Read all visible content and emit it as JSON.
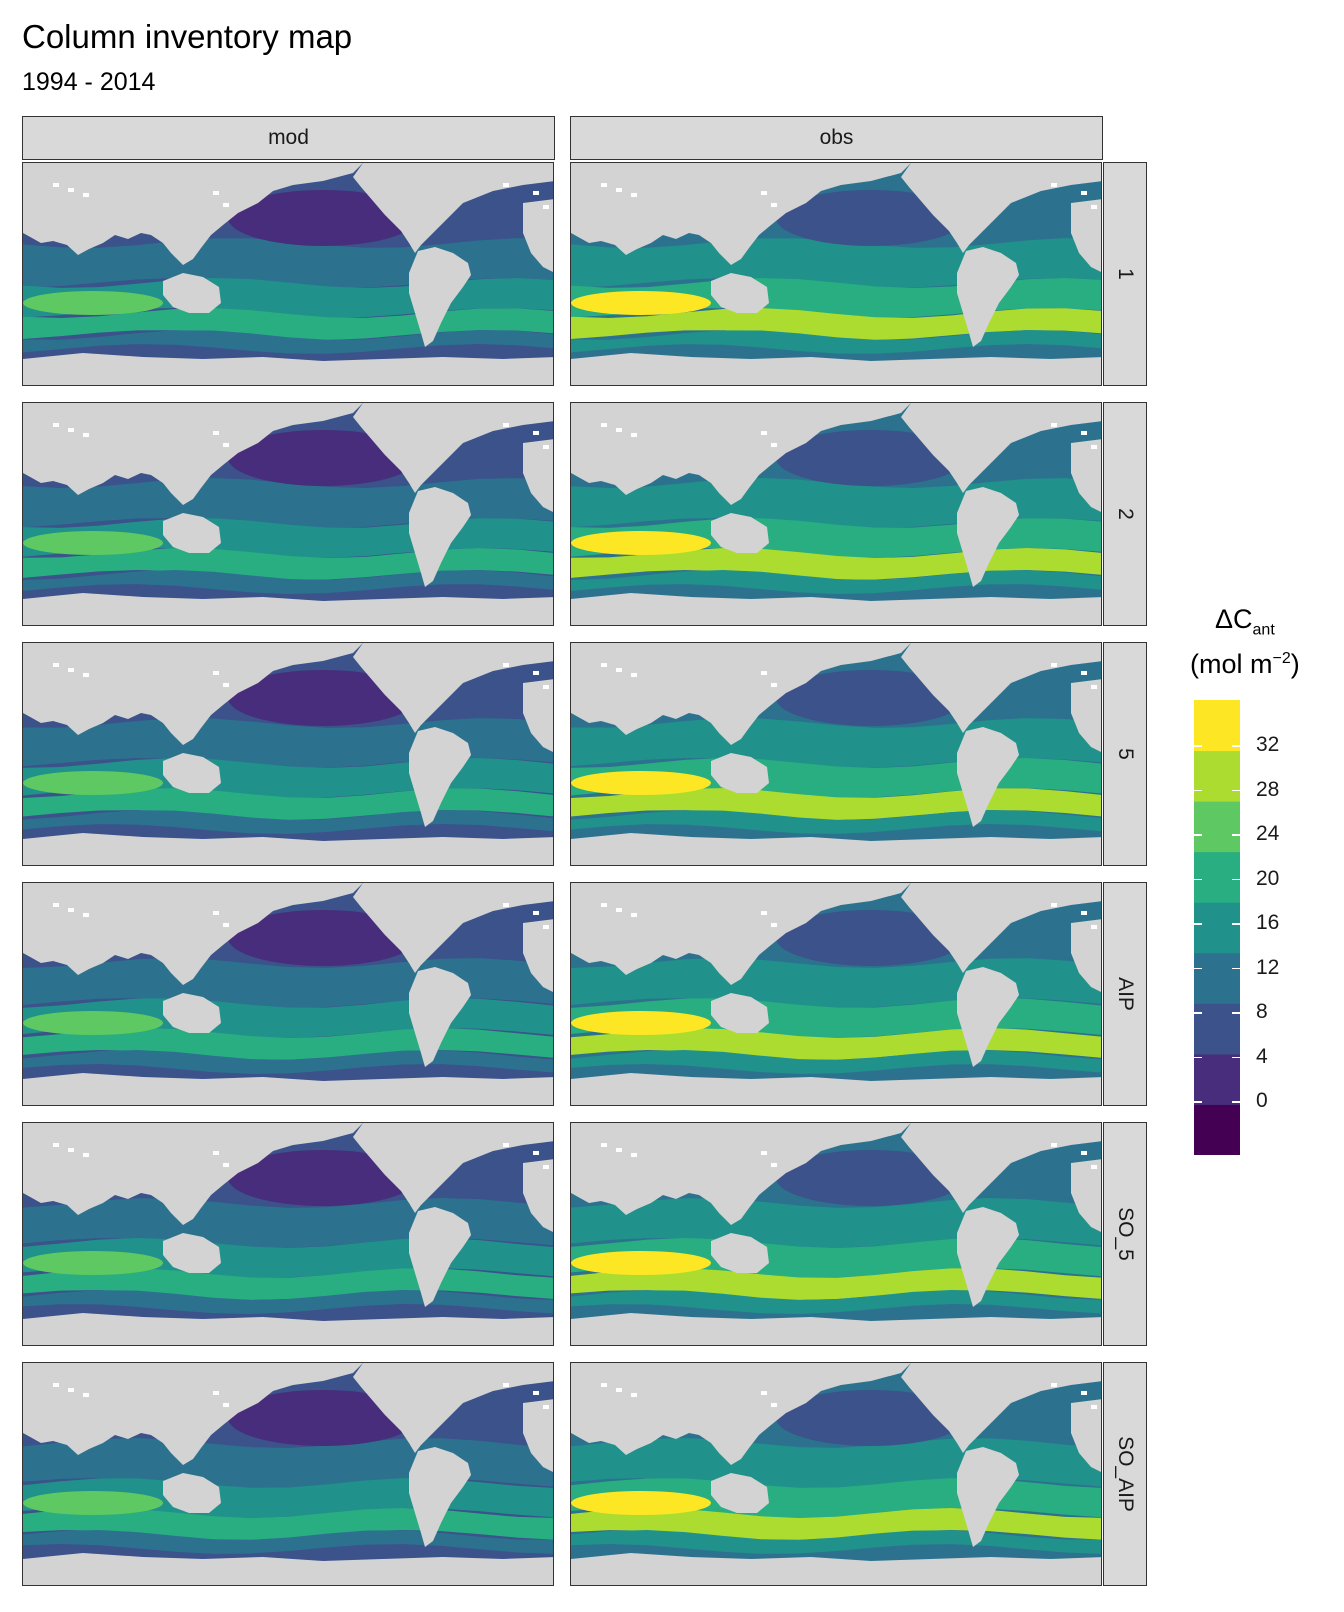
{
  "title": "Column inventory map",
  "subtitle": "1994 - 2014",
  "columns": [
    "mod",
    "obs"
  ],
  "rows": [
    "1",
    "2",
    "5",
    "AIP",
    "SO_5",
    "SO_AIP"
  ],
  "legend": {
    "title_main": "ΔC",
    "title_sub": "ant",
    "unit_prefix": "(mol m",
    "unit_sup": "−2",
    "unit_suffix": ")",
    "ticks": [
      "32",
      "28",
      "24",
      "20",
      "16",
      "12",
      "8",
      "4",
      "0"
    ],
    "colors": [
      "#440154",
      "#472d7b",
      "#3b528b",
      "#2c728e",
      "#21918c",
      "#28ae80",
      "#5ec962",
      "#addc30",
      "#fde725"
    ]
  },
  "colors": {
    "land": "#d3d3d3",
    "strip": "#d9d9d9"
  }
}
